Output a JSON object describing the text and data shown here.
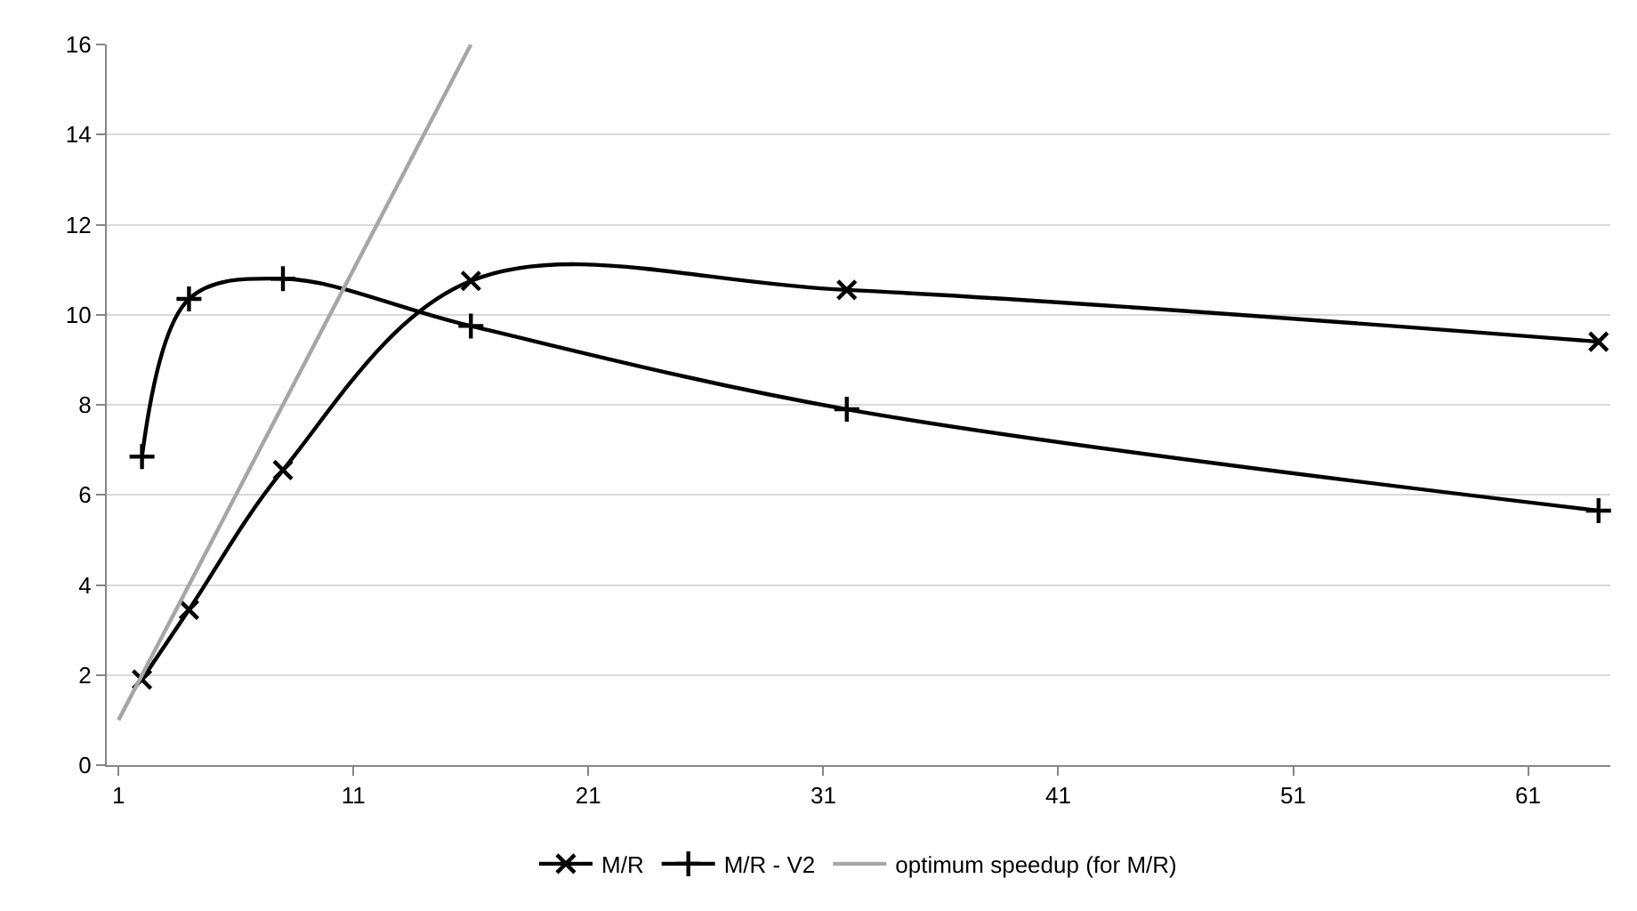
{
  "chart_data": {
    "type": "line",
    "x": [
      2,
      4,
      8,
      16,
      32,
      64
    ],
    "series": [
      {
        "name": "M/R",
        "color": "#000000",
        "marker": "x",
        "values": [
          1.9,
          3.45,
          6.55,
          10.75,
          10.55,
          9.4
        ]
      },
      {
        "name": "M/R - V2",
        "color": "#000000",
        "marker": "cross",
        "values": [
          6.85,
          10.35,
          10.8,
          9.75,
          7.9,
          5.65
        ]
      },
      {
        "name": "optimum speedup (for M/R)",
        "color": "#a6a6a6",
        "marker": "none",
        "x": [
          1,
          16
        ],
        "values": [
          1,
          16
        ]
      }
    ],
    "xlim": [
      0.5,
      64.5
    ],
    "xticks": [
      1,
      11,
      21,
      31,
      41,
      51,
      61
    ],
    "ylim": [
      0,
      16
    ],
    "yticks": [
      0,
      2,
      4,
      6,
      8,
      10,
      12,
      14,
      16
    ],
    "grid": "y",
    "legend": "bottom",
    "line_style": "solid"
  }
}
